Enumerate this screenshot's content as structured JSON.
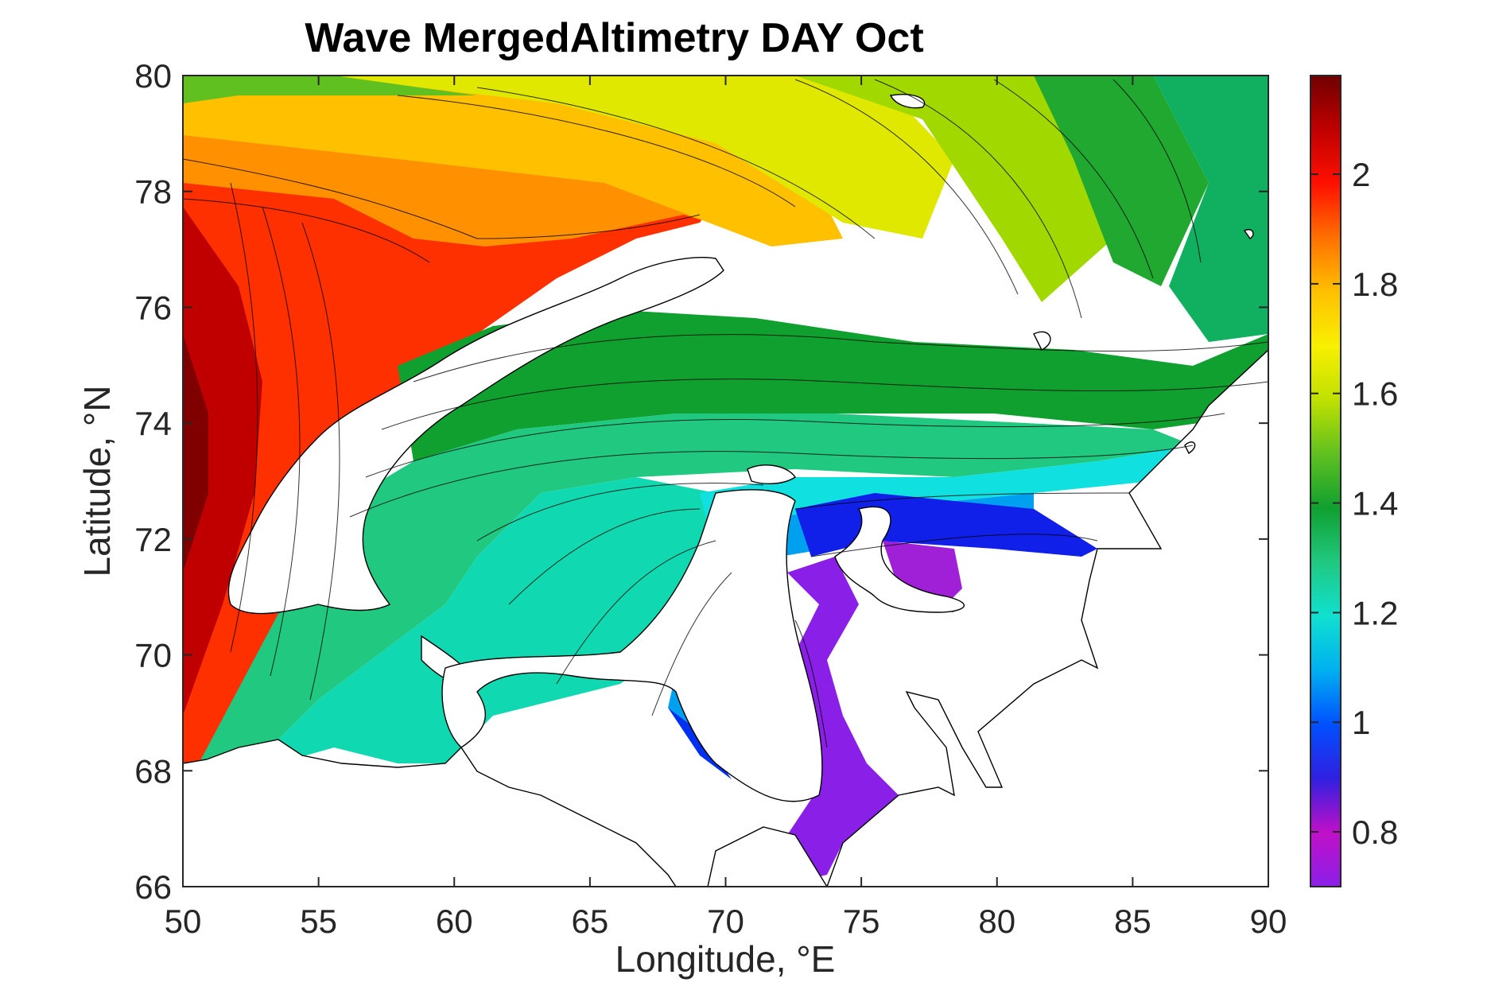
{
  "chart_data": {
    "type": "heatmap",
    "title": "Wave MergedAltimetry DAY Oct",
    "xlabel": "Longitude, °E",
    "ylabel": "Latitude, °N",
    "xlim": [
      50,
      90
    ],
    "ylim": [
      66,
      80
    ],
    "x_ticks": [
      50,
      55,
      60,
      65,
      70,
      75,
      80,
      85,
      90
    ],
    "y_ticks": [
      66,
      68,
      70,
      72,
      74,
      76,
      78,
      80
    ],
    "colorbar": {
      "range": [
        0.7,
        2.18
      ],
      "ticks": [
        0.8,
        1,
        1.2,
        1.4,
        1.6,
        1.8,
        2
      ],
      "colormap": [
        "#8a20e8",
        "#c010c8",
        "#3020e0",
        "#0050ff",
        "#00b0f0",
        "#10e0d0",
        "#20c880",
        "#10a030",
        "#60c020",
        "#c0e000",
        "#f8f000",
        "#ffc000",
        "#ff7000",
        "#ff1000",
        "#c00000",
        "#700000"
      ]
    },
    "contour_interval": 0.025,
    "land_color": "#ffffff",
    "grid": false,
    "legend": "colorbar-right"
  }
}
